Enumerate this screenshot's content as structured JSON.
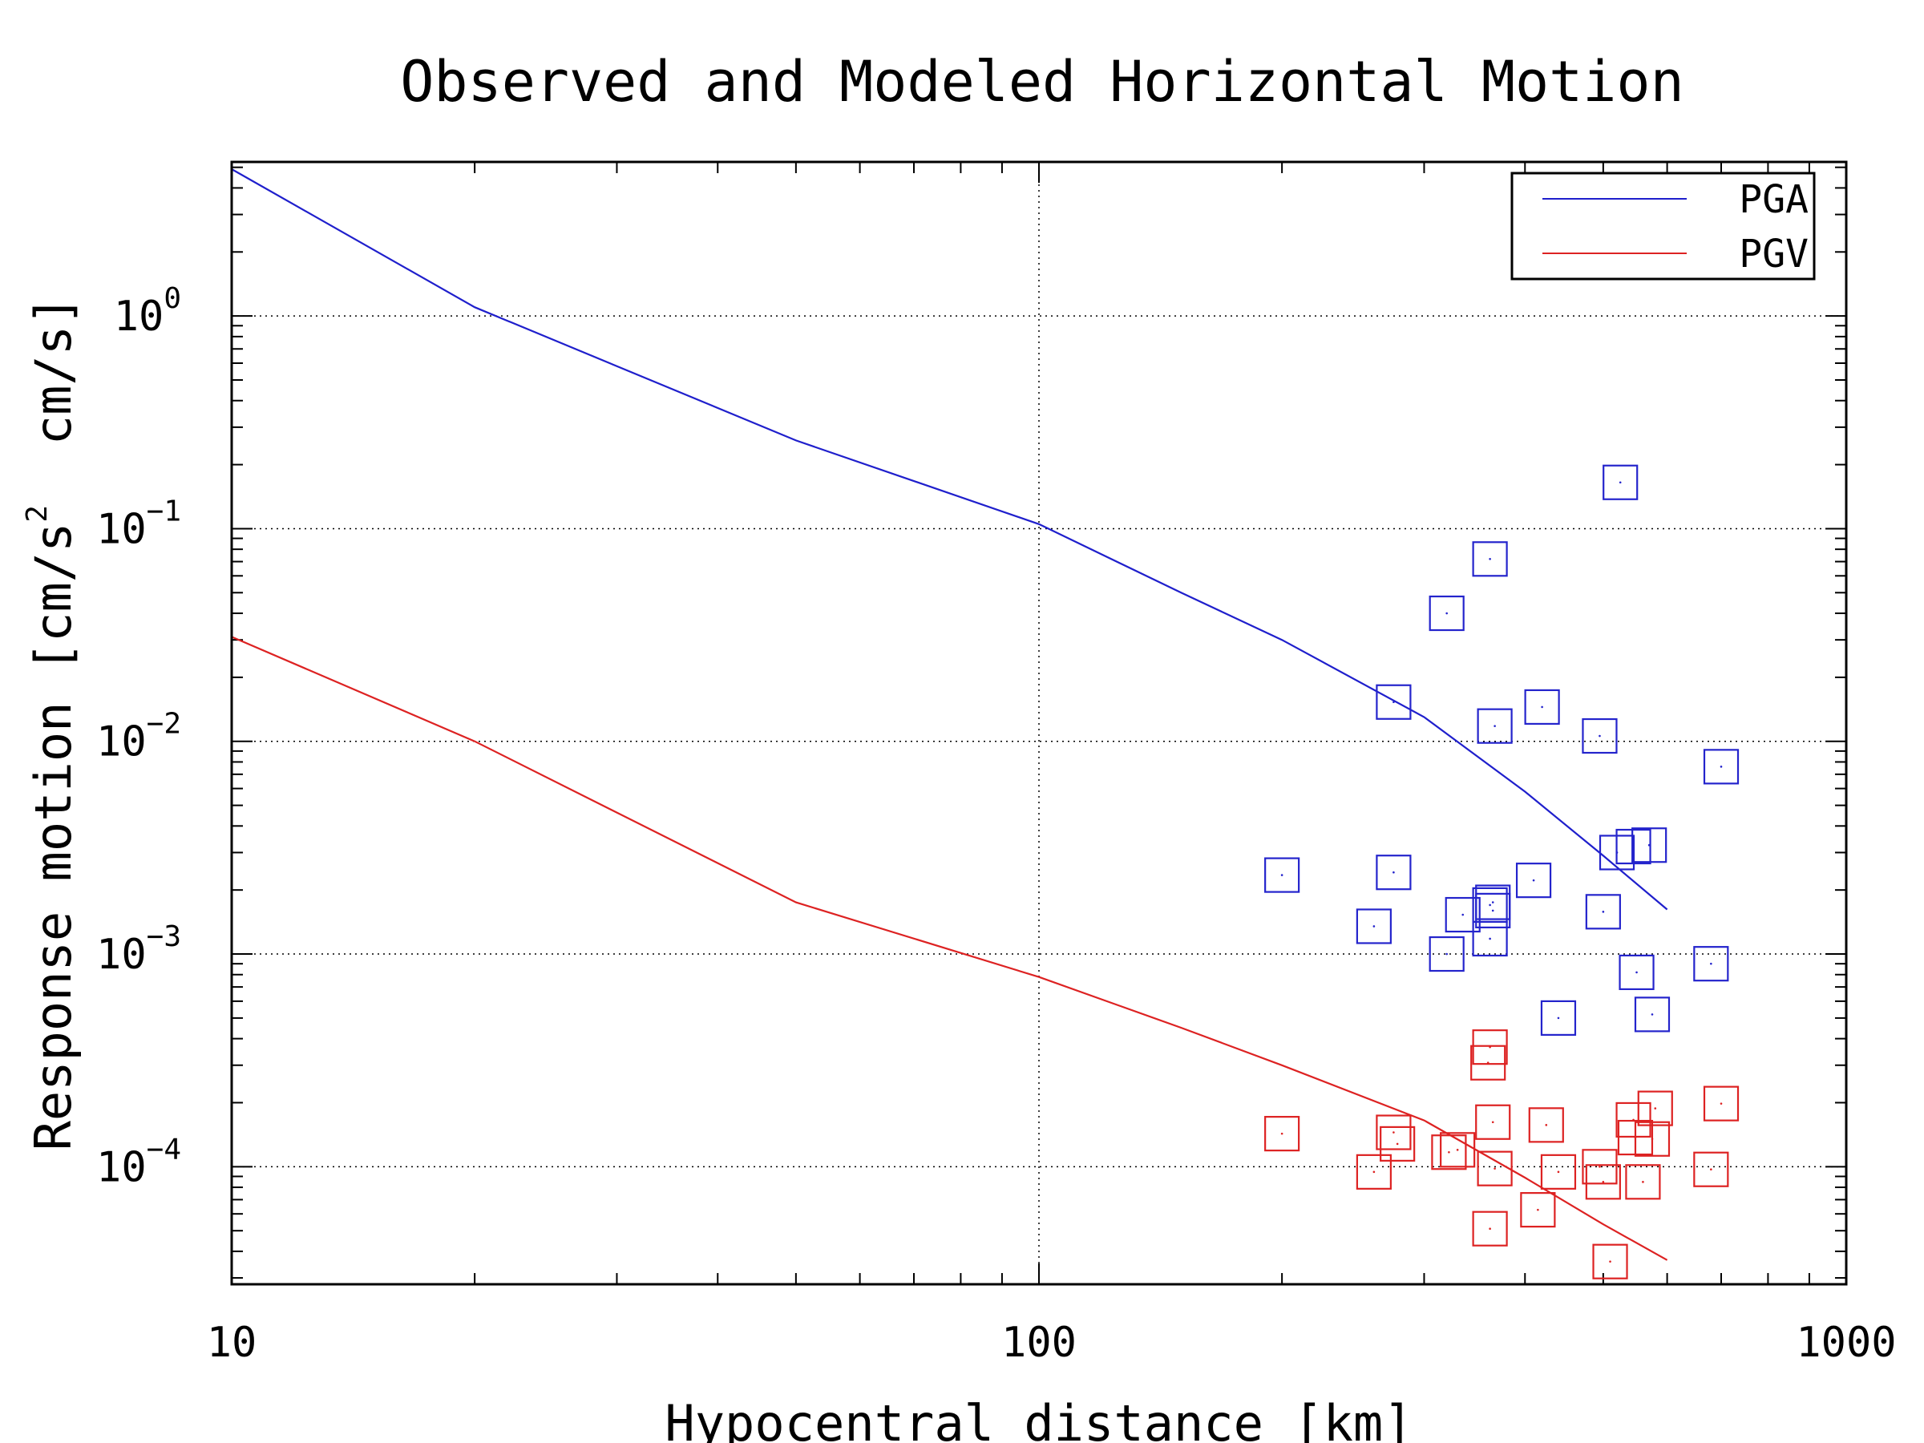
{
  "chart_data": {
    "type": "scatter",
    "title": "Observed and Modeled Horizontal Motion",
    "xlabel": "Hypocentral distance [km]",
    "ylabel_parts": [
      "Response motion [cm/s",
      "2",
      "  cm/s]"
    ],
    "x_scale": "log",
    "y_scale": "log",
    "xlim": [
      10,
      1000
    ],
    "ylim": [
      2.8e-05,
      5.3
    ],
    "grid": true,
    "legend_position": "top-right",
    "x_ticks": [
      {
        "value": 10,
        "label": "10"
      },
      {
        "value": 100,
        "label": "100"
      },
      {
        "value": 1000,
        "label": "1000"
      }
    ],
    "y_ticks": [
      {
        "value": 1,
        "base": "10",
        "exp": "0"
      },
      {
        "value": 0.1,
        "base": "10",
        "exp": "−1"
      },
      {
        "value": 0.01,
        "base": "10",
        "exp": "−2"
      },
      {
        "value": 0.001,
        "base": "10",
        "exp": "−3"
      },
      {
        "value": 0.0001,
        "base": "10",
        "exp": "−4"
      }
    ],
    "lines": [
      {
        "name": "PGA",
        "color": "#1f1fcc",
        "x": [
          10,
          20,
          50,
          100,
          150,
          200,
          300,
          400,
          500,
          600
        ],
        "y": [
          4.9,
          1.1,
          0.26,
          0.105,
          0.05,
          0.03,
          0.013,
          0.0058,
          0.0029,
          0.00162
        ]
      },
      {
        "name": "PGV",
        "color": "#dd2222",
        "x": [
          10,
          20,
          50,
          100,
          150,
          200,
          300,
          400,
          500,
          600
        ],
        "y": [
          0.031,
          0.01,
          0.00175,
          0.00078,
          0.00045,
          0.0003,
          0.000165,
          8.88e-05,
          5.36e-05,
          3.64e-05
        ]
      },
      {
        "name": "",
        "color": "",
        "x": [],
        "y": []
      }
    ],
    "observed": [
      {
        "name": "",
        "color": "#2424cc",
        "x": [
          200,
          260,
          275,
          275,
          320,
          320,
          335,
          362,
          362,
          365,
          365,
          367,
          362,
          410,
          420,
          440,
          495,
          500,
          520,
          525,
          545,
          550,
          570,
          575,
          680,
          700
        ],
        "y": [
          0.00235,
          0.00135,
          0.0153,
          0.00242,
          0.04,
          0.001,
          0.00153,
          0.072,
          0.0017,
          0.00175,
          0.0016,
          0.0118,
          0.00118,
          0.00222,
          0.0145,
          0.0005,
          0.0106,
          0.00158,
          0.003,
          0.165,
          0.0032,
          0.00082,
          0.00325,
          0.00052,
          0.0009,
          0.0076
        ]
      },
      {
        "name": "",
        "color": "#dd2222",
        "x": [
          200,
          260,
          275,
          278,
          322,
          330,
          360,
          362,
          365,
          367,
          362,
          415,
          425,
          440,
          495,
          500,
          510,
          545,
          548,
          560,
          575,
          580,
          680,
          700
        ],
        "y": [
          0.000143,
          9.45e-05,
          0.000145,
          0.000128,
          0.000117,
          0.00012,
          0.000308,
          0.000365,
          0.000162,
          9.8e-05,
          5.11e-05,
          6.27e-05,
          0.000157,
          9.45e-05,
          0.0001,
          8.48e-05,
          3.58e-05,
          0.000166,
          0.000137,
          8.48e-05,
          0.000135,
          0.000188,
          9.71e-05,
          0.000198
        ]
      }
    ],
    "legend": [
      {
        "label": "PGA",
        "color": "#1f1fcc"
      },
      {
        "label": "PGV",
        "color": "#dd2222"
      }
    ]
  }
}
